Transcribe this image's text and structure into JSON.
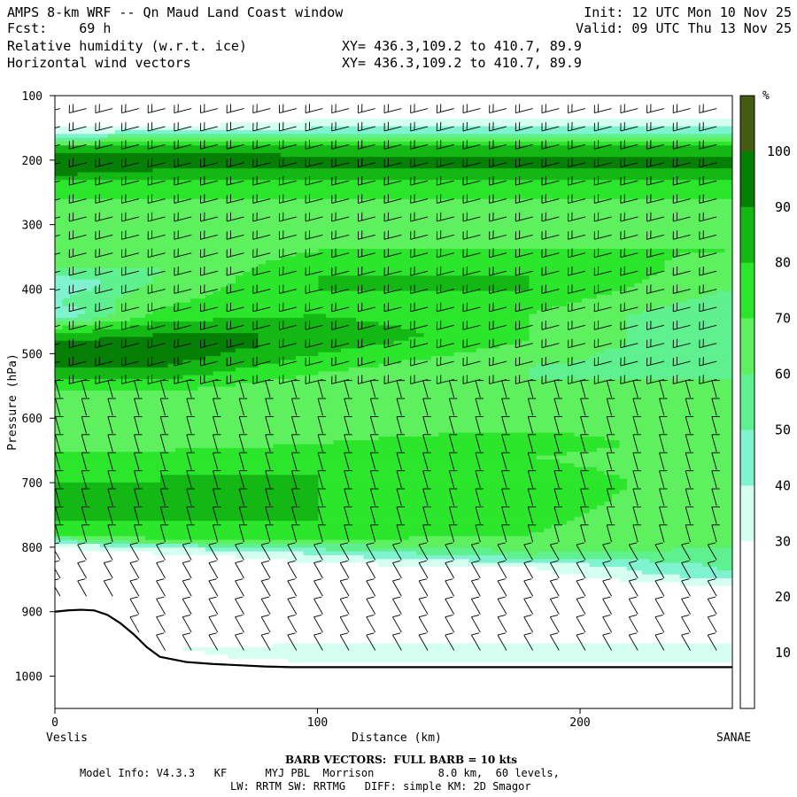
{
  "header": {
    "line1_left": "AMPS 8-km WRF -- Qn Maud Land Coast window",
    "line2_left": "Fcst:    69 h",
    "line3_left": "Relative humidity (w.r.t. ice)",
    "line4_left": "Horizontal wind vectors",
    "line1_right": "Init: 12 UTC Mon 10 Nov 25",
    "line2_right": "Valid: 09 UTC Thu 13 Nov 25",
    "line3_mid": "XY= 436.3,109.2 to 410.7, 89.9",
    "line4_mid": "XY= 436.3,109.2 to 410.7, 89.9"
  },
  "footer": {
    "barb_note": "BARB VECTORS:  FULL BARB = 10 kts",
    "model_line1": "Model Info: V4.3.3   KF      MYJ PBL  Morrison          8.0 km,  60 levels,",
    "model_line2": "LW: RRTM SW: RRTMG   DIFF: simple KM: 2D Smagor"
  },
  "colors": {
    "rh_0_30": "#ffffff",
    "rh_30_40": "#d5fff0",
    "rh_40_50": "#7ff2cf",
    "rh_50_60": "#5ff090",
    "rh_60_70": "#5ef05e",
    "rh_70_80": "#2be62b",
    "rh_80_90": "#14b814",
    "rh_90_100": "#057f05",
    "rh_100_plus": "#455c10",
    "terrain_line": "#000000"
  },
  "chart_data": {
    "type": "heatmap",
    "title": "Relative humidity (w.r.t. ice)",
    "xlabel": "Distance (km)",
    "ylabel": "Pressure (hPa)",
    "xlim": [
      0,
      258
    ],
    "ylim": [
      1050,
      100
    ],
    "x_ticks": [
      0,
      100,
      200
    ],
    "y_ticks": [
      100,
      200,
      300,
      400,
      500,
      600,
      700,
      800,
      900,
      1000
    ],
    "x_end_labels": {
      "left": "Veslis",
      "right": "SANAE"
    },
    "colorbar": {
      "unit": "%",
      "levels": [
        10,
        20,
        30,
        40,
        50,
        60,
        70,
        80,
        90,
        100
      ]
    },
    "rh_profiles": [
      {
        "x": 0,
        "levels": [
          [
            1000,
            0
          ],
          [
            900,
            0
          ],
          [
            860,
            0
          ],
          [
            800,
            30
          ],
          [
            780,
            70
          ],
          [
            760,
            80
          ],
          [
            700,
            80
          ],
          [
            650,
            70
          ],
          [
            600,
            60
          ],
          [
            560,
            70
          ],
          [
            540,
            80
          ],
          [
            520,
            90
          ],
          [
            500,
            100
          ],
          [
            480,
            90
          ],
          [
            460,
            70
          ],
          [
            440,
            40
          ],
          [
            420,
            50
          ],
          [
            390,
            40
          ],
          [
            370,
            60
          ],
          [
            300,
            60
          ],
          [
            260,
            70
          ],
          [
            230,
            80
          ],
          [
            215,
            100
          ],
          [
            195,
            100
          ],
          [
            180,
            80
          ],
          [
            170,
            60
          ],
          [
            160,
            40
          ],
          [
            150,
            30
          ],
          [
            100,
            0
          ]
        ]
      },
      {
        "x": 40,
        "levels": [
          [
            1000,
            0
          ],
          [
            960,
            30
          ],
          [
            930,
            20
          ],
          [
            880,
            10
          ],
          [
            820,
            20
          ],
          [
            800,
            40
          ],
          [
            790,
            70
          ],
          [
            760,
            80
          ],
          [
            690,
            80
          ],
          [
            650,
            70
          ],
          [
            610,
            60
          ],
          [
            560,
            70
          ],
          [
            540,
            80
          ],
          [
            520,
            90
          ],
          [
            490,
            100
          ],
          [
            470,
            90
          ],
          [
            450,
            80
          ],
          [
            430,
            70
          ],
          [
            380,
            60
          ],
          [
            300,
            60
          ],
          [
            260,
            70
          ],
          [
            230,
            80
          ],
          [
            215,
            90
          ],
          [
            195,
            100
          ],
          [
            180,
            80
          ],
          [
            165,
            60
          ],
          [
            150,
            30
          ],
          [
            100,
            0
          ]
        ]
      },
      {
        "x": 100,
        "levels": [
          [
            1000,
            0
          ],
          [
            970,
            40
          ],
          [
            950,
            30
          ],
          [
            900,
            10
          ],
          [
            840,
            20
          ],
          [
            810,
            40
          ],
          [
            790,
            70
          ],
          [
            760,
            80
          ],
          [
            690,
            80
          ],
          [
            640,
            70
          ],
          [
            600,
            60
          ],
          [
            560,
            60
          ],
          [
            530,
            70
          ],
          [
            500,
            80
          ],
          [
            470,
            90
          ],
          [
            440,
            80
          ],
          [
            400,
            80
          ],
          [
            380,
            80
          ],
          [
            300,
            60
          ],
          [
            260,
            70
          ],
          [
            230,
            80
          ],
          [
            210,
            90
          ],
          [
            195,
            90
          ],
          [
            180,
            80
          ],
          [
            165,
            60
          ],
          [
            150,
            40
          ],
          [
            100,
            0
          ]
        ]
      },
      {
        "x": 180,
        "levels": [
          [
            1000,
            0
          ],
          [
            970,
            40
          ],
          [
            950,
            30
          ],
          [
            900,
            10
          ],
          [
            860,
            20
          ],
          [
            830,
            30
          ],
          [
            810,
            60
          ],
          [
            780,
            70
          ],
          [
            700,
            80
          ],
          [
            660,
            70
          ],
          [
            640,
            80
          ],
          [
            620,
            70
          ],
          [
            560,
            60
          ],
          [
            520,
            60
          ],
          [
            480,
            70
          ],
          [
            440,
            70
          ],
          [
            400,
            80
          ],
          [
            370,
            80
          ],
          [
            300,
            60
          ],
          [
            260,
            70
          ],
          [
            230,
            80
          ],
          [
            210,
            90
          ],
          [
            195,
            90
          ],
          [
            180,
            80
          ],
          [
            165,
            60
          ],
          [
            150,
            40
          ],
          [
            100,
            0
          ]
        ]
      },
      {
        "x": 258,
        "levels": [
          [
            1000,
            0
          ],
          [
            970,
            40
          ],
          [
            950,
            30
          ],
          [
            900,
            10
          ],
          [
            880,
            20
          ],
          [
            860,
            30
          ],
          [
            840,
            50
          ],
          [
            800,
            60
          ],
          [
            720,
            60
          ],
          [
            660,
            60
          ],
          [
            580,
            60
          ],
          [
            540,
            60
          ],
          [
            500,
            50
          ],
          [
            440,
            50
          ],
          [
            400,
            60
          ],
          [
            340,
            70
          ],
          [
            300,
            60
          ],
          [
            260,
            70
          ],
          [
            230,
            80
          ],
          [
            210,
            90
          ],
          [
            195,
            90
          ],
          [
            180,
            80
          ],
          [
            165,
            60
          ],
          [
            150,
            40
          ],
          [
            100,
            0
          ]
        ]
      }
    ],
    "terrain_surface": {
      "x": [
        0,
        5,
        10,
        15,
        20,
        25,
        30,
        35,
        40,
        50,
        60,
        70,
        80,
        90,
        100,
        120,
        150,
        200,
        258
      ],
      "p": [
        900,
        898,
        897,
        898,
        905,
        918,
        935,
        955,
        970,
        978,
        981,
        983,
        985,
        986,
        986,
        986,
        986,
        986,
        986
      ]
    }
  }
}
